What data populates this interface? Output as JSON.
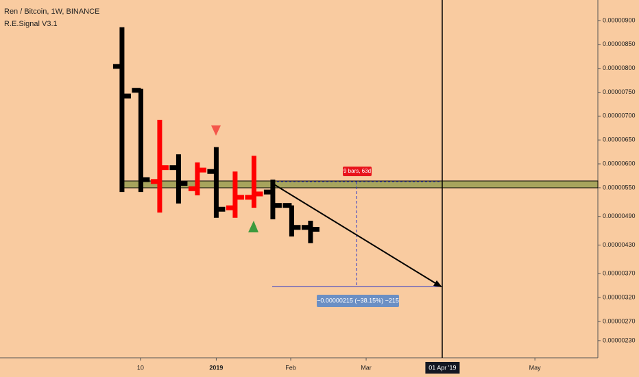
{
  "chart_data": {
    "type": "ohlc",
    "title": "Ren / Bitcoin, 1W, BINANCE",
    "subtitle": "R.E.Signal V3.1",
    "x": [
      0,
      1,
      2,
      3,
      4,
      5,
      6,
      7,
      8,
      9,
      10
    ],
    "open": [
      8.04e-06,
      7.54e-06,
      5.63e-06,
      5.92e-06,
      5.48e-06,
      5.84e-06,
      5.08e-06,
      5.3e-06,
      5.41e-06,
      5.13e-06,
      4.67e-06
    ],
    "high": [
      8.86e-06,
      7.57e-06,
      6.92e-06,
      6.2e-06,
      6.03e-06,
      6.35e-06,
      5.84e-06,
      6.17e-06,
      5.67e-06,
      5.13e-06,
      4.81e-06
    ],
    "low": [
      5.41e-06,
      5.41e-06,
      4.98e-06,
      5.17e-06,
      5.34e-06,
      4.87e-06,
      4.87e-06,
      5.08e-06,
      4.84e-06,
      4.48e-06,
      4.34e-06
    ],
    "close": [
      7.42e-06,
      5.67e-06,
      5.92e-06,
      5.59e-06,
      5.87e-06,
      5.05e-06,
      5.3e-06,
      5.37e-06,
      5.13e-06,
      4.67e-06,
      4.63e-06
    ],
    "colors": [
      "#000000",
      "#000000",
      "#ff0000",
      "#000000",
      "#ff0000",
      "#000000",
      "#ff0000",
      "#ff0000",
      "#000000",
      "#000000",
      "#000000"
    ],
    "xlim": [
      -6.47,
      25.24
    ],
    "xticks": [
      {
        "value": 0.98,
        "label": "10"
      },
      {
        "value": 5.0,
        "label": "2019"
      },
      {
        "value": 8.95,
        "label": "Feb"
      },
      {
        "value": 12.95,
        "label": "Mar"
      },
      {
        "value": 21.9,
        "label": "May"
      }
    ],
    "ylim": [
      1.94e-06,
      9.43e-06
    ],
    "yticks": [
      {
        "value": 9e-06,
        "label": "0.00000900"
      },
      {
        "value": 8.5e-06,
        "label": "0.00000850"
      },
      {
        "value": 8e-06,
        "label": "0.00000800"
      },
      {
        "value": 7.5e-06,
        "label": "0.00000750"
      },
      {
        "value": 7e-06,
        "label": "0.00000700"
      },
      {
        "value": 6.5e-06,
        "label": "0.00000650"
      },
      {
        "value": 6e-06,
        "label": "0.00000600"
      },
      {
        "value": 5.5e-06,
        "label": "0.00000550"
      },
      {
        "value": 4.9e-06,
        "label": "0.00000490"
      },
      {
        "value": 4.3e-06,
        "label": "0.00000430"
      },
      {
        "value": 3.7e-06,
        "label": "0.00000370"
      },
      {
        "value": 3.2e-06,
        "label": "0.00000320"
      },
      {
        "value": 2.7e-06,
        "label": "0.00000270"
      },
      {
        "value": 2.3e-06,
        "label": "0.00000230"
      }
    ],
    "marker_label": {
      "value": 17.0,
      "label": "01 Apr '19"
    },
    "annotations": [
      "9 bars, 63d",
      "−0.00000215 (−38.15%) −215"
    ]
  }
}
